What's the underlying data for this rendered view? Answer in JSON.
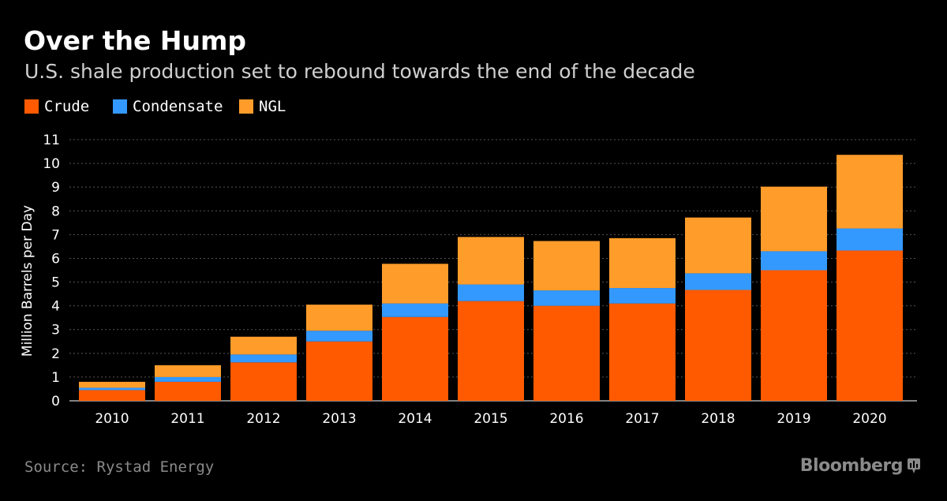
{
  "header": {
    "title": "Over the Hump",
    "subtitle": "U.S. shale production set to rebound towards the end of the decade"
  },
  "footer": {
    "source": "Source: Rystad Energy",
    "brand": "Bloomberg",
    "brand_icon": "bloomberg-terminal-icon"
  },
  "colors": {
    "background": "#000000",
    "crude": "#ff5a00",
    "condensate": "#3399ff",
    "ngl": "#ff9c2a",
    "grid": "#555555",
    "axis_text": "#ffffff",
    "muted_text": "#8a8a8a"
  },
  "chart_data": {
    "type": "bar",
    "stacked": true,
    "title": "Over the Hump",
    "subtitle": "U.S. shale production set to rebound towards the end of the decade",
    "xlabel": "",
    "ylabel": "Million Barrels per Day",
    "ylim": [
      0,
      11
    ],
    "yticks": [
      "0",
      "1",
      "2",
      "3",
      "4",
      "5",
      "6",
      "7",
      "8",
      "9",
      "10",
      "11"
    ],
    "grid": true,
    "legend_position": "top-left",
    "categories": [
      "2010",
      "2011",
      "2012",
      "2013",
      "2014",
      "2015",
      "2016",
      "2017",
      "2018",
      "2019",
      "2020"
    ],
    "series": [
      {
        "name": "Crude",
        "color": "#ff5a00",
        "values": [
          0.45,
          0.8,
          1.62,
          2.5,
          3.53,
          4.2,
          4.0,
          4.1,
          4.67,
          5.5,
          6.33
        ]
      },
      {
        "name": "Condensate",
        "color": "#3399ff",
        "values": [
          0.1,
          0.2,
          0.33,
          0.45,
          0.57,
          0.7,
          0.65,
          0.65,
          0.7,
          0.8,
          0.93
        ]
      },
      {
        "name": "NGL",
        "color": "#ff9c2a",
        "values": [
          0.25,
          0.5,
          0.75,
          1.1,
          1.67,
          2.0,
          2.08,
          2.1,
          2.35,
          2.72,
          3.1
        ]
      }
    ]
  }
}
